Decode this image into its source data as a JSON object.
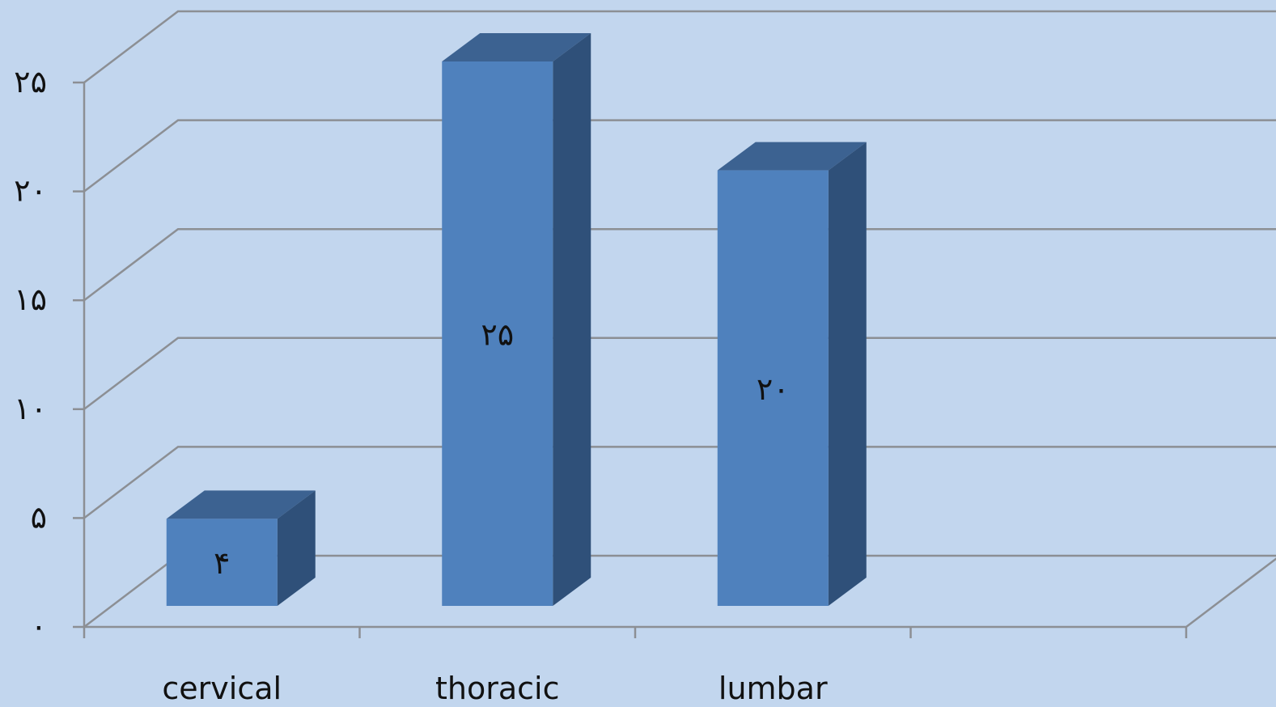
{
  "chart_data": {
    "type": "bar",
    "style": "3d-column",
    "categories": [
      "cervical",
      "thoracic",
      "lumbar",
      ""
    ],
    "values": [
      4,
      25,
      20,
      null
    ],
    "value_labels": [
      "۴",
      "۲۵",
      "۲۰",
      ""
    ],
    "ylim": [
      0,
      25
    ],
    "yticks": [
      0,
      5,
      10,
      15,
      20,
      25
    ],
    "ytick_labels": [
      "۰",
      "۵",
      "۱۰",
      "۱۵",
      "۲۰",
      "۲۵"
    ],
    "title": "",
    "xlabel": "",
    "ylabel": "",
    "grid": true,
    "legend": "none"
  },
  "colors": {
    "background": "#c2d6ee",
    "bar_front": "#4f81bd",
    "bar_side": "#2f5079",
    "bar_top": "#3c6291",
    "grid": "#8c8f94"
  }
}
